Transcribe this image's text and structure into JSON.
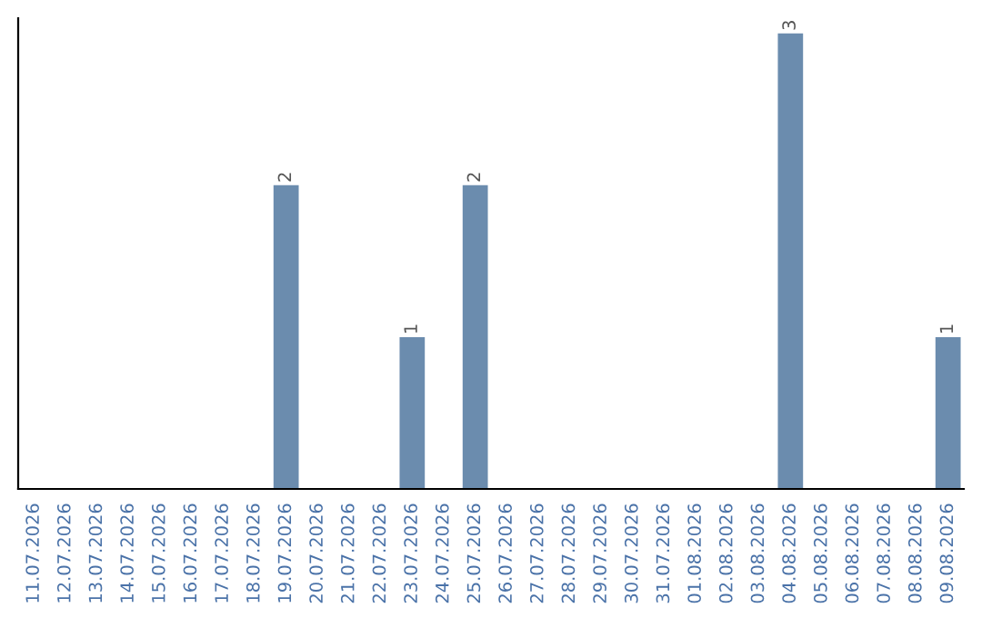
{
  "chart_data": {
    "type": "bar",
    "categories": [
      "11.07.2026",
      "12.07.2026",
      "13.07.2026",
      "14.07.2026",
      "15.07.2026",
      "16.07.2026",
      "17.07.2026",
      "18.07.2026",
      "19.07.2026",
      "20.07.2026",
      "21.07.2026",
      "22.07.2026",
      "23.07.2026",
      "24.07.2026",
      "25.07.2026",
      "26.07.2026",
      "27.07.2026",
      "28.07.2026",
      "29.07.2026",
      "30.07.2026",
      "31.07.2026",
      "01.08.2026",
      "02.08.2026",
      "03.08.2026",
      "04.08.2026",
      "05.08.2026",
      "06.08.2026",
      "07.08.2026",
      "08.08.2026",
      "09.08.2026"
    ],
    "values": [
      0,
      0,
      0,
      0,
      0,
      0,
      0,
      0,
      2,
      0,
      0,
      0,
      1,
      0,
      2,
      0,
      0,
      0,
      0,
      0,
      0,
      0,
      0,
      0,
      3,
      0,
      0,
      0,
      0,
      1
    ],
    "value_labels": [
      null,
      null,
      null,
      null,
      null,
      null,
      null,
      null,
      "2",
      null,
      null,
      null,
      "1",
      null,
      "2",
      null,
      null,
      null,
      null,
      null,
      null,
      null,
      null,
      null,
      "3",
      null,
      null,
      null,
      null,
      "1"
    ],
    "color": "#6b8cae",
    "ylim": [
      0,
      3.1
    ],
    "tick_labels": "x",
    "grid": false,
    "legend": false
  }
}
